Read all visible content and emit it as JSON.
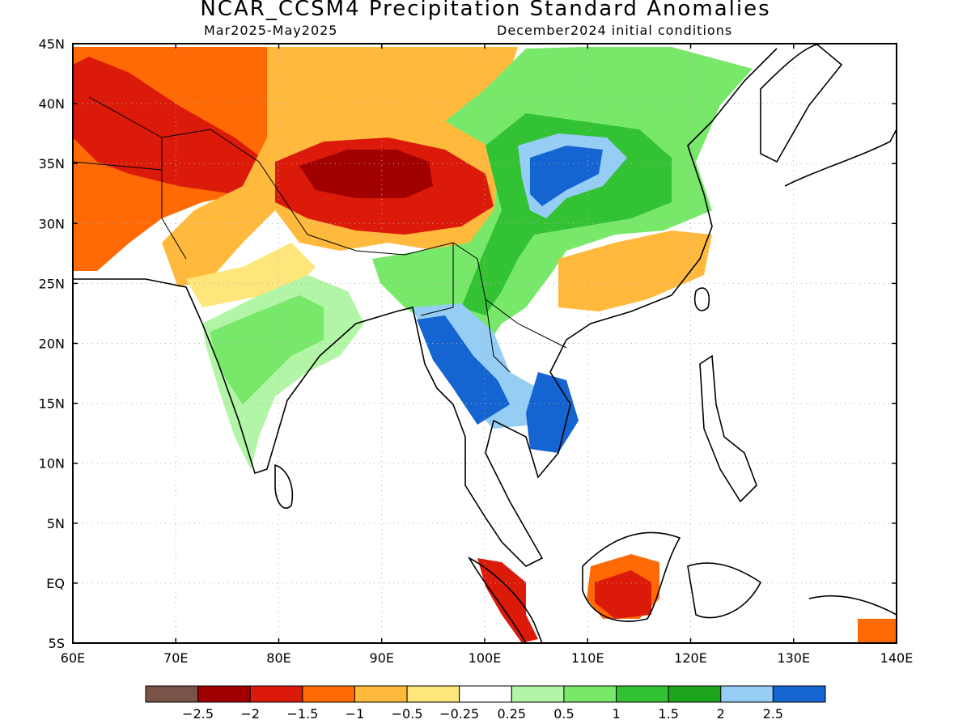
{
  "header": {
    "title": "NCAR_CCSM4 Precipitation Standard Anomalies",
    "period": "Mar2025-May2025",
    "init": "December2024 initial conditions"
  },
  "map": {
    "lon_range": [
      60,
      140
    ],
    "lat_range": [
      -5,
      45
    ],
    "lon_ticks": [
      "60E",
      "70E",
      "80E",
      "90E",
      "100E",
      "110E",
      "120E",
      "130E",
      "140E"
    ],
    "lat_ticks": [
      "45N",
      "40N",
      "35N",
      "30N",
      "25N",
      "20N",
      "15N",
      "10N",
      "5N",
      "EQ",
      "5S"
    ],
    "gridlines": "dotted"
  },
  "colorbar": {
    "colors": [
      "#7a5348",
      "#a00000",
      "#dc1a0a",
      "#ff6a05",
      "#ffb93c",
      "#ffe67a",
      "#ffffff",
      "#b3f5a6",
      "#78e86b",
      "#33c234",
      "#1ea51e",
      "#96cdf5",
      "#1464d2"
    ],
    "labels": [
      "-2.5",
      "-2",
      "-1.5",
      "-1",
      "-0.5",
      "-0.25",
      "0.25",
      "0.5",
      "1",
      "1.5",
      "2",
      "2.5"
    ]
  }
}
